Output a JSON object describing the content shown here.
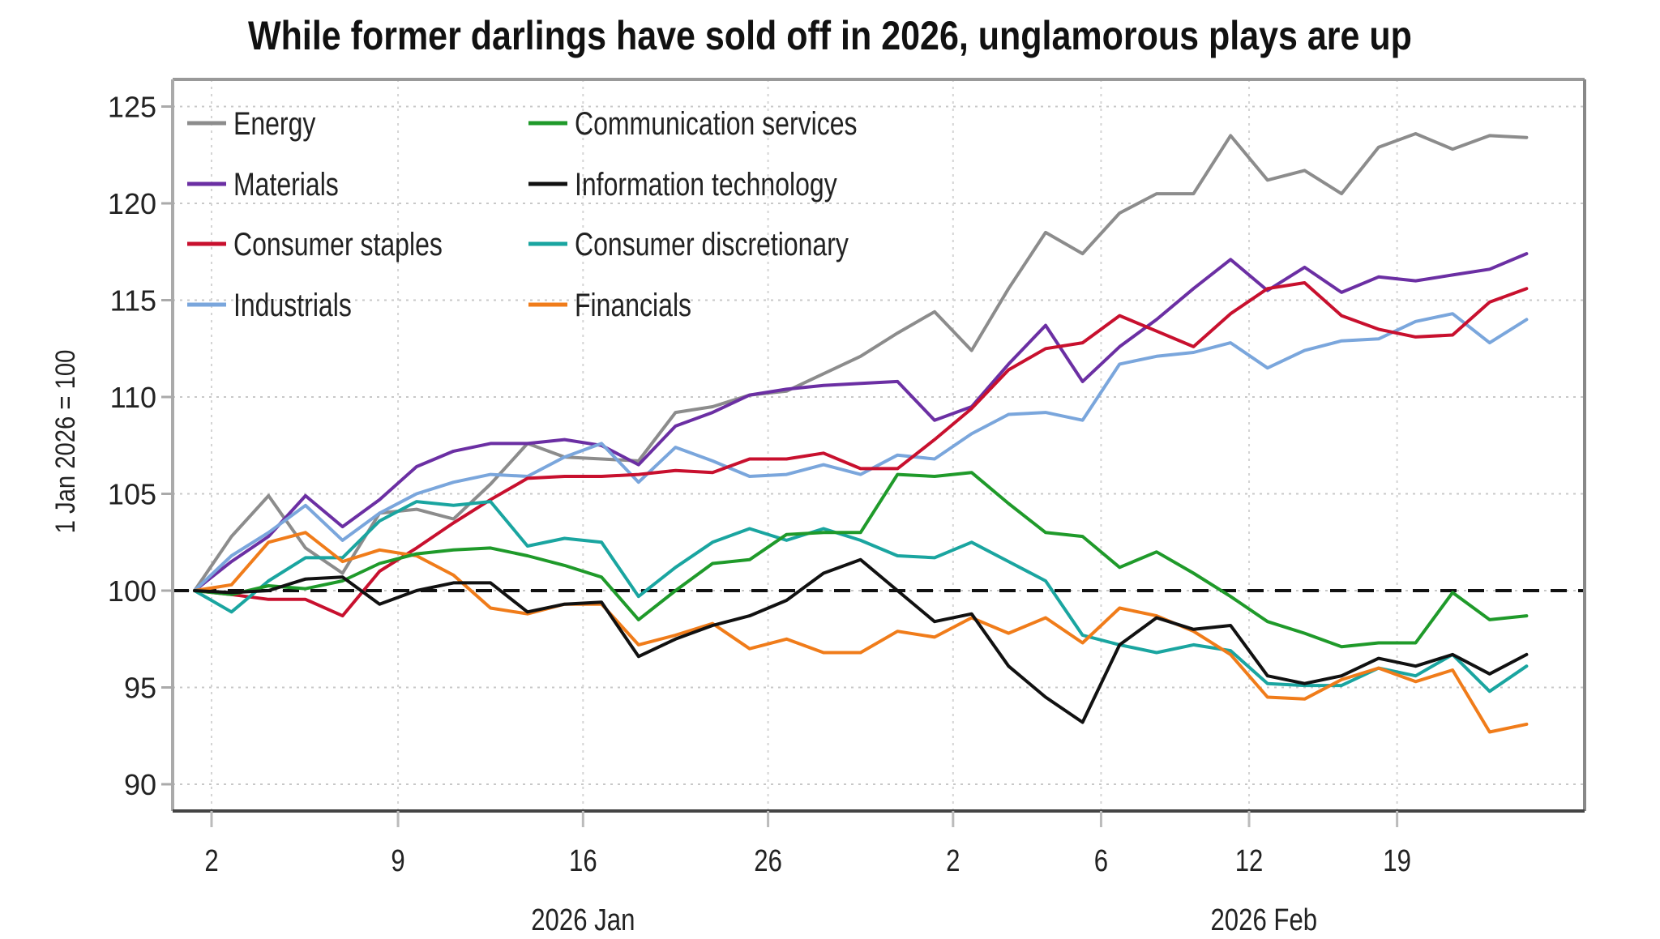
{
  "chart_data": {
    "type": "line",
    "title": "While former darlings have sold off in 2026, unglamorous plays are up",
    "xlabel": "",
    "ylabel": "1 Jan 2026 = 100",
    "ylim": [
      89,
      126
    ],
    "yticks": [
      90,
      95,
      100,
      105,
      110,
      115,
      120,
      125
    ],
    "grid": true,
    "legend_position": "top-left",
    "baseline": 100,
    "x_count": 37,
    "xticks": [
      {
        "index": 0.46,
        "label": "2"
      },
      {
        "index": 5.5,
        "label": "9"
      },
      {
        "index": 10.5,
        "label": "16"
      },
      {
        "index": 15.5,
        "label": "26"
      },
      {
        "index": 20.5,
        "label": "2"
      },
      {
        "index": 24.5,
        "label": "6"
      },
      {
        "index": 28.5,
        "label": "12"
      },
      {
        "index": 32.5,
        "label": "19"
      }
    ],
    "month_labels": [
      {
        "index": 10.5,
        "label": "2026 Jan"
      },
      {
        "index": 28.9,
        "label": "2026 Feb"
      }
    ],
    "series": [
      {
        "name": "Energy",
        "color": "#8c8c8c",
        "values": [
          100,
          102.8,
          104.9,
          102.2,
          100.9,
          104.0,
          104.2,
          103.7,
          105.5,
          107.6,
          106.9,
          106.8,
          106.7,
          109.2,
          109.5,
          110.1,
          110.3,
          111.2,
          112.1,
          113.3,
          114.4,
          112.4,
          115.6,
          118.5,
          117.4,
          119.5,
          120.5,
          120.5,
          123.5,
          121.2,
          121.7,
          120.5,
          122.9,
          123.6,
          122.8,
          123.5,
          123.4
        ]
      },
      {
        "name": "Materials",
        "color": "#6b2fa3",
        "values": [
          100,
          101.5,
          102.8,
          104.9,
          103.3,
          104.7,
          106.4,
          107.2,
          107.6,
          107.6,
          107.8,
          107.5,
          106.5,
          108.5,
          109.2,
          110.1,
          110.4,
          110.6,
          110.7,
          110.8,
          108.8,
          109.5,
          111.7,
          113.7,
          110.8,
          112.6,
          114.0,
          115.6,
          117.1,
          115.5,
          116.7,
          115.4,
          116.2,
          116.0,
          116.3,
          116.6,
          117.4
        ]
      },
      {
        "name": "Consumer staples",
        "color": "#c8102e",
        "values": [
          100,
          99.8,
          99.55,
          99.55,
          98.7,
          101.0,
          102.2,
          103.5,
          104.7,
          105.8,
          105.9,
          105.9,
          106.0,
          106.2,
          106.1,
          106.8,
          106.8,
          107.1,
          106.3,
          106.3,
          107.8,
          109.4,
          111.4,
          112.5,
          112.8,
          114.2,
          113.4,
          112.6,
          114.3,
          115.6,
          115.9,
          114.2,
          113.5,
          113.1,
          113.2,
          114.9,
          115.6
        ]
      },
      {
        "name": "Industrials",
        "color": "#7aa6dc",
        "values": [
          100,
          101.8,
          103.0,
          104.4,
          102.6,
          104.0,
          105.0,
          105.6,
          106.0,
          105.9,
          106.9,
          107.6,
          105.6,
          107.4,
          106.7,
          105.9,
          106.0,
          106.5,
          106.0,
          107.0,
          106.8,
          108.1,
          109.1,
          109.2,
          108.8,
          111.7,
          112.1,
          112.3,
          112.8,
          111.5,
          112.4,
          112.9,
          113.0,
          113.9,
          114.3,
          112.8,
          114.0
        ]
      },
      {
        "name": "Communication services",
        "color": "#1f9a2a",
        "values": [
          100,
          99.8,
          100.25,
          100.1,
          100.5,
          101.4,
          101.9,
          102.1,
          102.2,
          101.8,
          101.3,
          100.7,
          98.5,
          100.0,
          101.4,
          101.6,
          102.9,
          103.0,
          103.0,
          106.0,
          105.9,
          106.1,
          104.5,
          103.0,
          102.8,
          101.2,
          102.0,
          100.9,
          99.7,
          98.4,
          97.8,
          97.1,
          97.3,
          97.3,
          99.9,
          98.5,
          98.7
        ]
      },
      {
        "name": "Information technology",
        "color": "#111111",
        "values": [
          100,
          99.9,
          100.0,
          100.6,
          100.7,
          99.3,
          100.0,
          100.4,
          100.4,
          98.9,
          99.3,
          99.4,
          96.6,
          97.5,
          98.2,
          98.7,
          99.5,
          100.9,
          101.6,
          100.0,
          98.4,
          98.8,
          96.1,
          94.5,
          93.2,
          97.2,
          98.6,
          98.0,
          98.2,
          95.6,
          95.2,
          95.6,
          96.5,
          96.1,
          96.7,
          95.7,
          96.7
        ]
      },
      {
        "name": "Consumer discretionary",
        "color": "#1aa5a0",
        "values": [
          100,
          98.9,
          100.5,
          101.7,
          101.7,
          103.6,
          104.6,
          104.4,
          104.6,
          102.3,
          102.7,
          102.5,
          99.7,
          101.2,
          102.5,
          103.2,
          102.6,
          103.2,
          102.6,
          101.8,
          101.7,
          102.5,
          101.5,
          100.5,
          97.7,
          97.2,
          96.8,
          97.2,
          96.9,
          95.2,
          95.1,
          95.1,
          96.0,
          95.6,
          96.7,
          94.8,
          96.1
        ]
      },
      {
        "name": "Financials",
        "color": "#f07c1a",
        "values": [
          100,
          100.3,
          102.5,
          103.0,
          101.5,
          102.1,
          101.8,
          100.8,
          99.1,
          98.8,
          99.3,
          99.3,
          97.2,
          97.7,
          98.3,
          97.0,
          97.5,
          96.8,
          96.8,
          97.9,
          97.6,
          98.6,
          97.8,
          98.6,
          97.3,
          99.1,
          98.7,
          97.9,
          96.7,
          94.5,
          94.4,
          95.4,
          96.0,
          95.3,
          95.9,
          92.7,
          93.1
        ]
      }
    ],
    "legend_layout": [
      [
        0,
        4
      ],
      [
        1,
        5
      ],
      [
        2,
        6
      ],
      [
        3,
        7
      ]
    ]
  }
}
